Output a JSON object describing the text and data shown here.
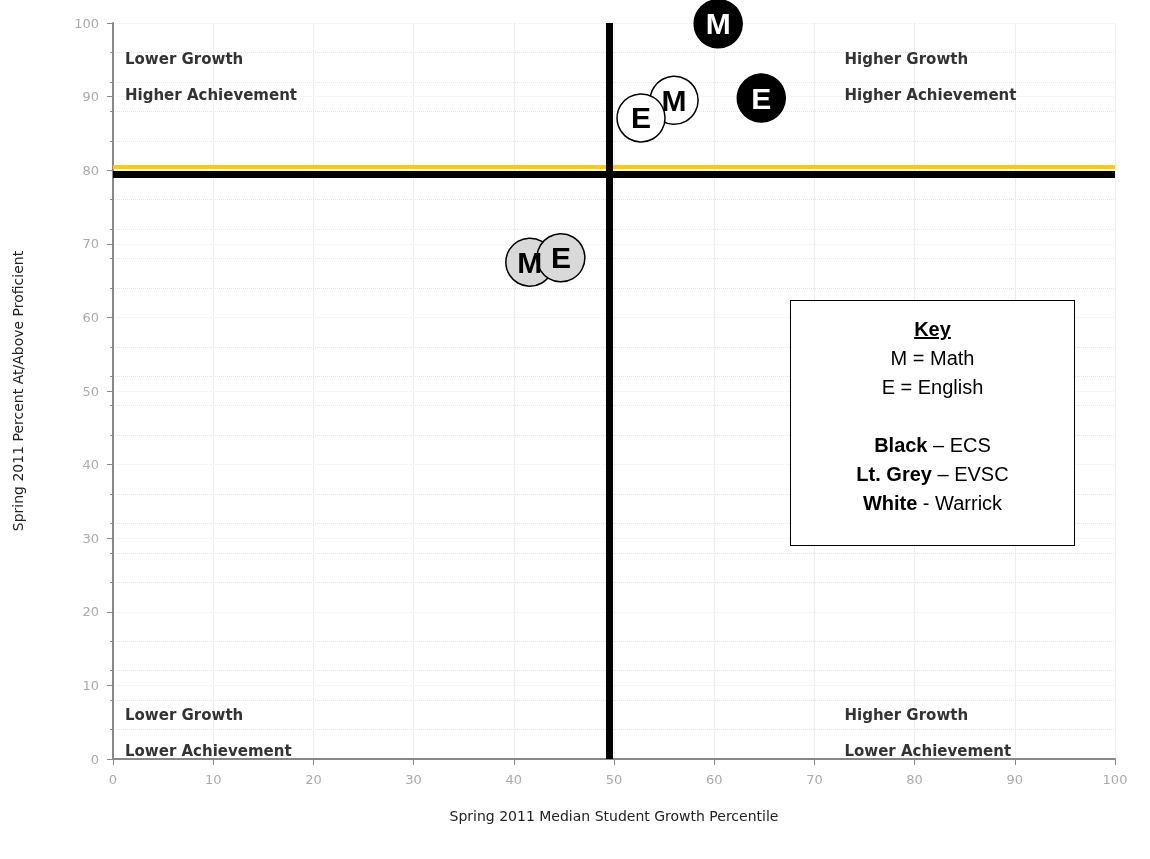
{
  "chart_data": {
    "type": "scatter",
    "xlabel": "Spring 2011 Median Student Growth Percentile",
    "ylabel": "Spring 2011 Percent At/Above Proficient",
    "xlim": [
      0,
      100
    ],
    "xticks": [
      0,
      10,
      20,
      30,
      40,
      50,
      60,
      70,
      80,
      90,
      100
    ],
    "ylim": [
      0,
      100
    ],
    "yticks": [
      0,
      10,
      20,
      30,
      40,
      50,
      60,
      70,
      80,
      90,
      100
    ],
    "grid": true,
    "marker": "circle",
    "series": [
      {
        "color": "#000000",
        "x": [
          60.4,
          64.7
        ],
        "values": [
          99.9,
          89.8
        ],
        "value_labels": [
          "M",
          "E"
        ]
      },
      {
        "color": "#d9d9d9",
        "x": [
          41.6,
          44.7
        ],
        "values": [
          67.5,
          68.1
        ],
        "value_labels": [
          "M",
          "E"
        ]
      },
      {
        "color": "#ffffff",
        "x": [
          56,
          52.7
        ],
        "values": [
          89.5,
          87.1
        ],
        "value_labels": [
          "M",
          "E"
        ]
      }
    ],
    "ref_lines": [
      {
        "axis": "y",
        "value": 80.5,
        "color": "#ffcc00"
      },
      {
        "axis": "y",
        "value": 79.5,
        "color": "#000000"
      },
      {
        "axis": "x",
        "value": 49.5,
        "color": "#000000"
      }
    ],
    "annotations": [
      "Lower Growth\nHigher Achievement",
      "Higher Growth\nHigher Achievement",
      "Lower Growth\nLower Achievement",
      "Higher Growth\nLower Achievement",
      "Key\nM = Math\nE = English\n\nBlack – ECS\nLt. Grey – EVSC\nWhite - Warrick"
    ]
  }
}
